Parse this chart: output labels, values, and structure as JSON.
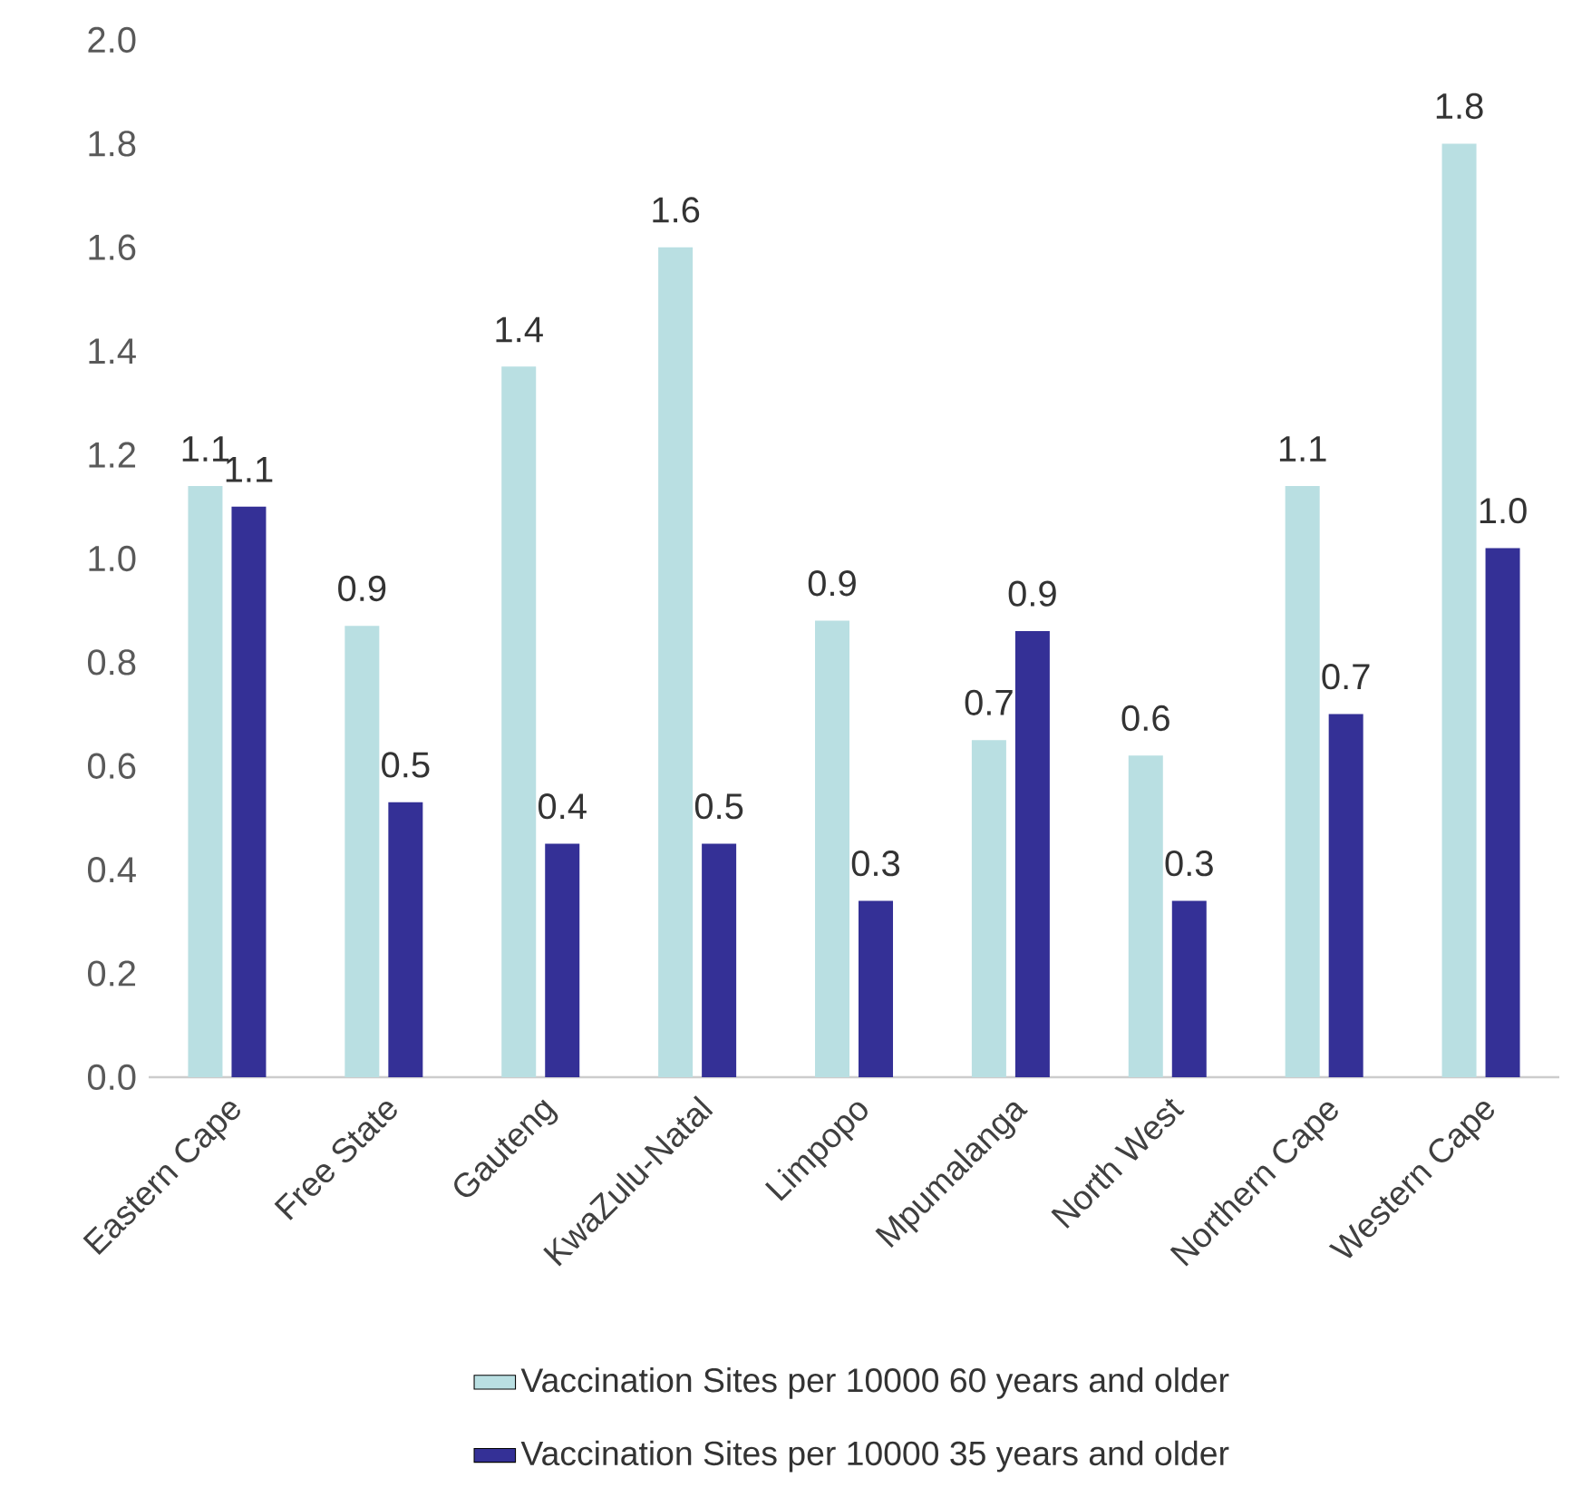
{
  "chart_data": {
    "type": "bar",
    "categories": [
      "Eastern Cape",
      "Free State",
      "Gauteng",
      "KwaZulu-Natal",
      "Limpopo",
      "Mpumalanga",
      "North West",
      "Northern Cape",
      "Western Cape"
    ],
    "series": [
      {
        "name": "Vaccination Sites per 10000 60 years and older",
        "color": "#b9dfe2",
        "values": [
          1.14,
          0.87,
          1.37,
          1.6,
          0.88,
          0.65,
          0.62,
          1.14,
          1.8
        ],
        "value_labels": [
          "1.1",
          "0.9",
          "1.4",
          "1.6",
          "0.9",
          "0.7",
          "0.6",
          "1.1",
          "1.8"
        ]
      },
      {
        "name": "Vaccination Sites per 10000 35 years and older",
        "color": "#343096",
        "values": [
          1.1,
          0.53,
          0.45,
          0.45,
          0.34,
          0.86,
          0.34,
          0.7,
          1.02
        ],
        "value_labels": [
          "1.1",
          "0.5",
          "0.4",
          "0.5",
          "0.3",
          "0.9",
          "0.3",
          "0.7",
          "1.0"
        ]
      }
    ],
    "ylim": [
      0,
      2
    ],
    "yticks": [
      {
        "value": 0,
        "label": "0.0"
      },
      0.2,
      0.4,
      0.6,
      0.8,
      {
        "value": 1,
        "label": "1.0"
      },
      1.2,
      1.4,
      1.6,
      1.8,
      {
        "value": 2,
        "label": "2.0"
      }
    ],
    "legend": "bottom"
  }
}
